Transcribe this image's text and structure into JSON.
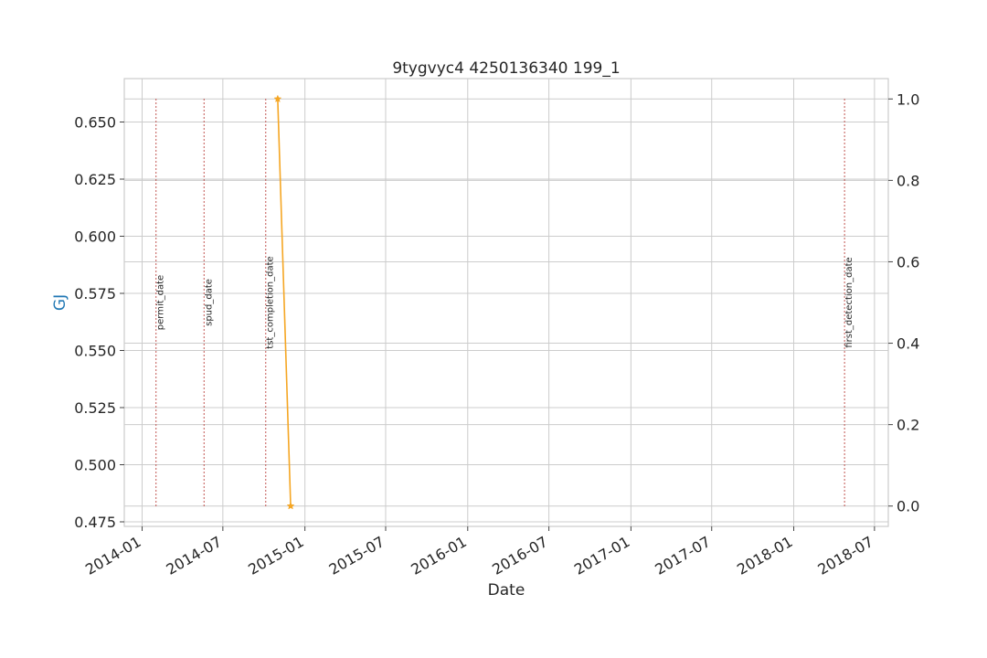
{
  "chart_data": {
    "type": "line",
    "title": "9tygvyc4 4250136340 199_1",
    "xlabel": "Date",
    "ylabel": "GJ",
    "ylabel_color": "#1f77b4",
    "xlim": [
      "2013-11-22",
      "2018-08-01"
    ],
    "ylim": [
      0.473,
      0.669
    ],
    "y2lim": [
      -0.05,
      1.05
    ],
    "x_ticks": [
      "2014-01",
      "2014-07",
      "2015-01",
      "2015-07",
      "2016-01",
      "2016-07",
      "2017-01",
      "2017-07",
      "2018-01",
      "2018-07"
    ],
    "y_ticks": [
      "0.475",
      "0.500",
      "0.525",
      "0.550",
      "0.575",
      "0.600",
      "0.625",
      "0.650"
    ],
    "y2_ticks": [
      "0.0",
      "0.2",
      "0.4",
      "0.6",
      "0.8",
      "1.0"
    ],
    "grid": true,
    "series": [
      {
        "axis": "right",
        "color": "#f5a623",
        "marker": "star",
        "x": [
          "2014-11-01",
          "2014-11-30"
        ],
        "y": [
          1.0,
          0.0
        ]
      }
    ],
    "event_lines": [
      {
        "label": "permit_date",
        "date": "2014-02-01",
        "color": "#c0504d"
      },
      {
        "label": "spud_date",
        "date": "2014-05-20",
        "color": "#c0504d"
      },
      {
        "label": "tst_completion_date",
        "date": "2014-10-05",
        "color": "#c0504d"
      },
      {
        "label": "first_detection_date",
        "date": "2018-04-25",
        "color": "#c0504d"
      }
    ]
  }
}
